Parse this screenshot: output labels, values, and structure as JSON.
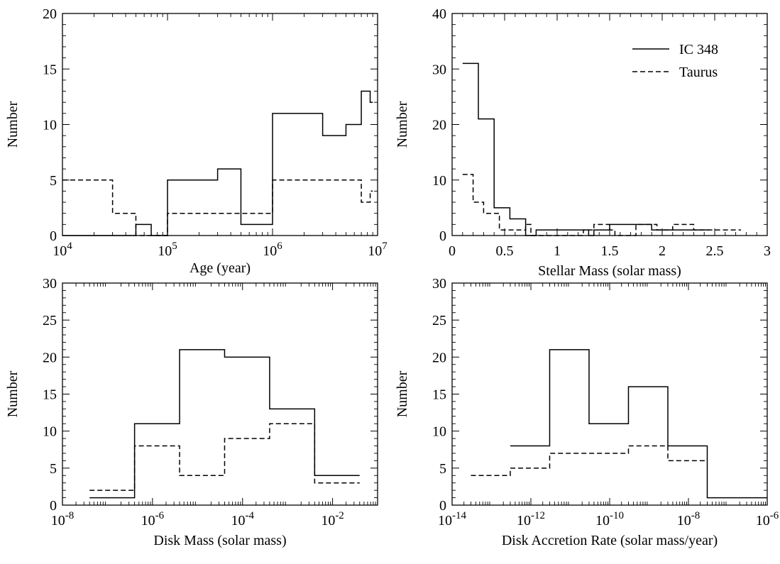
{
  "chart_data": [
    {
      "type": "histogram",
      "xscale": "log",
      "xlim": [
        10000,
        10000000
      ],
      "ylim": [
        0,
        20
      ],
      "xticks": [
        10000,
        100000,
        1000000,
        10000000
      ],
      "xtick_labels": [
        {
          "base": "10",
          "exp": "4"
        },
        {
          "base": "10",
          "exp": "5"
        },
        {
          "base": "10",
          "exp": "6"
        },
        {
          "base": "10",
          "exp": "7"
        }
      ],
      "yticks": [
        0,
        5,
        10,
        15,
        20
      ],
      "ytick_labels": [
        "0",
        "5",
        "10",
        "15",
        "20"
      ],
      "xlabel": "Age (year)",
      "ylabel": "Number",
      "grid": false,
      "series": [
        {
          "name": "IC 348",
          "style": "solid",
          "edges": [
            10000,
            50000,
            70000,
            100000,
            300000,
            500000,
            1000000,
            3000000,
            5000000,
            7000000,
            8500000,
            9000000
          ],
          "counts": [
            0,
            1,
            0,
            5,
            6,
            1,
            11,
            9,
            10,
            13,
            12
          ]
        },
        {
          "name": "Taurus",
          "style": "dashed",
          "edges": [
            10000,
            30000,
            50000,
            100000,
            1000000,
            7000000,
            8500000,
            9000000
          ],
          "counts": [
            5,
            2,
            0,
            2,
            5,
            3,
            4
          ]
        }
      ]
    },
    {
      "type": "histogram",
      "xscale": "linear",
      "xlim": [
        0,
        3
      ],
      "ylim": [
        0,
        40
      ],
      "xticks": [
        0,
        0.5,
        1,
        1.5,
        2,
        2.5,
        3
      ],
      "xtick_labels": [
        "0",
        "0.5",
        "1",
        "1.5",
        "2",
        "2.5",
        "3"
      ],
      "yticks": [
        0,
        10,
        20,
        30,
        40
      ],
      "ytick_labels": [
        "0",
        "10",
        "20",
        "30",
        "40"
      ],
      "xlabel": "Stellar Mass (solar mass)",
      "ylabel": "Number",
      "grid": false,
      "legend": {
        "position": "top-right"
      },
      "series": [
        {
          "name": "IC 348",
          "style": "solid",
          "edges": [
            0.1,
            0.25,
            0.4,
            0.55,
            0.7,
            0.8,
            1.2,
            1.3,
            1.35,
            1.5,
            1.55,
            1.9,
            2.0,
            2.45
          ],
          "counts": [
            31,
            21,
            5,
            3,
            0,
            1,
            1,
            0,
            1,
            2,
            2,
            1,
            1
          ]
        },
        {
          "name": "Taurus",
          "style": "dashed",
          "edges": [
            0.1,
            0.2,
            0.3,
            0.45,
            0.55,
            0.7,
            0.75,
            1.25,
            1.35,
            1.5,
            1.55,
            1.75,
            1.95,
            2.1,
            2.3,
            2.7,
            2.75
          ],
          "counts": [
            11,
            6,
            4,
            1,
            1,
            2,
            0,
            1,
            2,
            1,
            0,
            2,
            1,
            2,
            1,
            1
          ]
        }
      ],
      "legend_labels": [
        "IC 348",
        "Taurus"
      ]
    },
    {
      "type": "histogram",
      "xscale": "log",
      "xlim": [
        1e-08,
        0.1
      ],
      "ylim": [
        0,
        30
      ],
      "xticks": [
        1e-08,
        1e-06,
        0.0001,
        0.01
      ],
      "xtick_labels": [
        {
          "base": "10",
          "exp": "-8"
        },
        {
          "base": "10",
          "exp": "-6"
        },
        {
          "base": "10",
          "exp": "-4"
        },
        {
          "base": "10",
          "exp": "-2"
        }
      ],
      "yticks": [
        0,
        5,
        10,
        15,
        20,
        25,
        30
      ],
      "ytick_labels": [
        "0",
        "5",
        "10",
        "15",
        "20",
        "25",
        "30"
      ],
      "xlabel": "Disk Mass (solar mass)",
      "ylabel": "Number",
      "grid": false,
      "series": [
        {
          "name": "IC 348",
          "style": "solid",
          "edges": [
            4e-08,
            4e-07,
            4e-06,
            4e-05,
            0.0004,
            0.004,
            0.04
          ],
          "counts": [
            1,
            11,
            21,
            20,
            13,
            4
          ]
        },
        {
          "name": "Taurus",
          "style": "dashed",
          "edges": [
            4e-08,
            4e-07,
            4e-06,
            4e-05,
            0.0004,
            0.004,
            0.04
          ],
          "counts": [
            2,
            8,
            4,
            9,
            11,
            3
          ]
        }
      ]
    },
    {
      "type": "histogram",
      "xscale": "log",
      "xlim": [
        1e-14,
        1e-06
      ],
      "ylim": [
        0,
        30
      ],
      "xticks": [
        1e-14,
        1e-12,
        1e-10,
        1e-08,
        1e-06
      ],
      "xtick_labels": [
        {
          "base": "10",
          "exp": "-14"
        },
        {
          "base": "10",
          "exp": "-12"
        },
        {
          "base": "10",
          "exp": "-10"
        },
        {
          "base": "10",
          "exp": "-8"
        },
        {
          "base": "10",
          "exp": "-6"
        }
      ],
      "yticks": [
        0,
        5,
        10,
        15,
        20,
        25,
        30
      ],
      "ytick_labels": [
        "0",
        "5",
        "10",
        "15",
        "20",
        "25",
        "30"
      ],
      "xlabel": "Disk Accretion Rate (solar mass/year)",
      "ylabel": "Number",
      "grid": false,
      "series": [
        {
          "name": "IC 348",
          "style": "solid",
          "edges": [
            3e-13,
            3e-12,
            3e-11,
            3e-10,
            3e-09,
            3e-08,
            1e-06
          ],
          "counts": [
            8,
            21,
            11,
            16,
            8,
            1
          ]
        },
        {
          "name": "Taurus",
          "style": "dashed",
          "edges": [
            3e-14,
            3e-13,
            3e-12,
            3e-11,
            3e-10,
            3e-09,
            3e-08
          ],
          "counts": [
            4,
            5,
            7,
            7,
            8,
            6
          ]
        }
      ]
    }
  ]
}
